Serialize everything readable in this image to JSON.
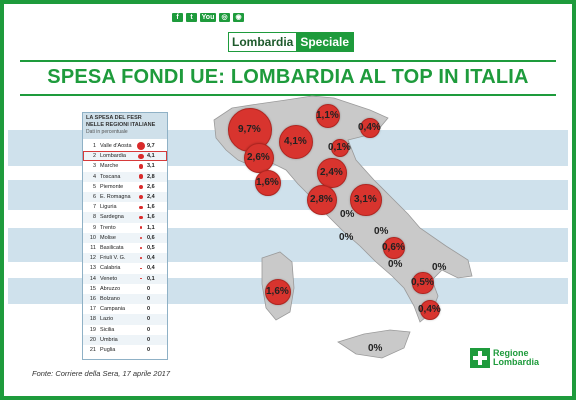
{
  "header": {
    "brand_left": "Lombardia",
    "brand_right": "Speciale",
    "social_icons": [
      "facebook-icon",
      "twitter-icon",
      "youtube-icon",
      "instagram-icon",
      "rss-icon"
    ],
    "social_labels": [
      "f",
      "t",
      "You",
      "◎",
      "◉"
    ]
  },
  "title": "SPESA FONDI UE: LOMBARDIA AL TOP IN ITALIA",
  "panel": {
    "heading_1": "LA SPESA DEL FESR",
    "heading_2": "NELLE REGIONI ITALIANE",
    "heading_3": "Dati in percentuale"
  },
  "chart_data": {
    "type": "table",
    "title": "LA SPESA DEL FESR NELLE REGIONI ITALIANE",
    "subtitle": "Dati in percentuale",
    "columns": [
      "rank",
      "region",
      "value"
    ],
    "rows": [
      {
        "rank": "1",
        "region": "Valle d'Aosta",
        "value": "9,7"
      },
      {
        "rank": "2",
        "region": "Lombardia",
        "value": "4,1"
      },
      {
        "rank": "3",
        "region": "Marche",
        "value": "3,1"
      },
      {
        "rank": "4",
        "region": "Toscana",
        "value": "2,8"
      },
      {
        "rank": "5",
        "region": "Piemonte",
        "value": "2,6"
      },
      {
        "rank": "6",
        "region": "E. Romagna",
        "value": "2,4"
      },
      {
        "rank": "7",
        "region": "Liguria",
        "value": "1,6"
      },
      {
        "rank": "8",
        "region": "Sardegna",
        "value": "1,6"
      },
      {
        "rank": "9",
        "region": "Trento",
        "value": "1,1"
      },
      {
        "rank": "10",
        "region": "Molise",
        "value": "0,6"
      },
      {
        "rank": "11",
        "region": "Basilicata",
        "value": "0,5"
      },
      {
        "rank": "12",
        "region": "Friuli V. G.",
        "value": "0,4"
      },
      {
        "rank": "13",
        "region": "Calabria",
        "value": "0,4"
      },
      {
        "rank": "14",
        "region": "Veneto",
        "value": "0,1"
      },
      {
        "rank": "15",
        "region": "Abruzzo",
        "value": "0"
      },
      {
        "rank": "16",
        "region": "Bolzano",
        "value": "0"
      },
      {
        "rank": "17",
        "region": "Campania",
        "value": "0"
      },
      {
        "rank": "18",
        "region": "Lazio",
        "value": "0"
      },
      {
        "rank": "19",
        "region": "Sicilia",
        "value": "0"
      },
      {
        "rank": "20",
        "region": "Umbria",
        "value": "0"
      },
      {
        "rank": "21",
        "region": "Puglia",
        "value": "0"
      }
    ],
    "highlighted_region": "Lombardia",
    "map_labels": [
      {
        "region": "Valle d'Aosta",
        "label": "9,7%"
      },
      {
        "region": "Lombardia",
        "label": "4,1%"
      },
      {
        "region": "Trento",
        "label": "1,1%"
      },
      {
        "region": "Friuli V. G.",
        "label": "0,4%"
      },
      {
        "region": "Veneto",
        "label": "0,1%"
      },
      {
        "region": "Piemonte",
        "label": "2,6%"
      },
      {
        "region": "Liguria",
        "label": "1,6%"
      },
      {
        "region": "E. Romagna",
        "label": "2,4%"
      },
      {
        "region": "Toscana",
        "label": "2,8%"
      },
      {
        "region": "Marche",
        "label": "3,1%"
      },
      {
        "region": "Umbria",
        "label": "0%"
      },
      {
        "region": "Lazio",
        "label": "0%"
      },
      {
        "region": "Abruzzo",
        "label": "0%"
      },
      {
        "region": "Molise",
        "label": "0,6%"
      },
      {
        "region": "Campania",
        "label": "0%"
      },
      {
        "region": "Puglia",
        "label": "0%"
      },
      {
        "region": "Basilicata",
        "label": "0,5%"
      },
      {
        "region": "Calabria",
        "label": "0,4%"
      },
      {
        "region": "Sardegna",
        "label": "1,6%"
      },
      {
        "region": "Sicilia",
        "label": "0%"
      }
    ]
  },
  "source": "Fonte: Corriere della Sera, 17 aprile 2017",
  "logo": {
    "line1": "Regione",
    "line2": "Lombardia"
  },
  "colors": {
    "brand_green": "#1e9b3c",
    "bubble_red": "#d8342e",
    "highlight": "#d63a3a"
  }
}
